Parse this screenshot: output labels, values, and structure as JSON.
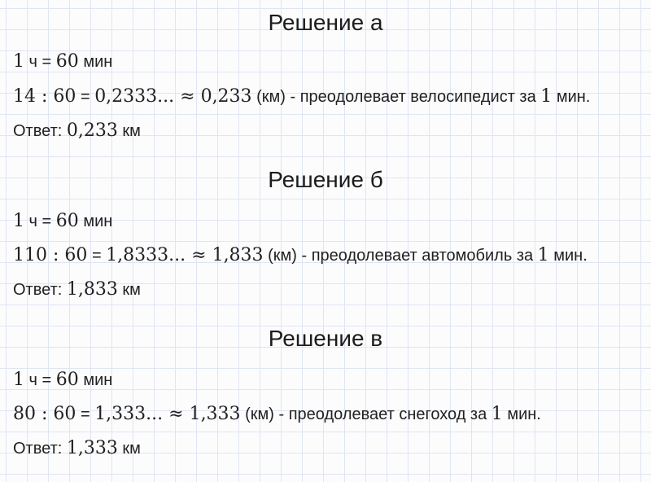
{
  "colors": {
    "background": "#fcfcfd",
    "grid_line": "#dfe5f3",
    "text": "#212121"
  },
  "document": {
    "sections": [
      {
        "id": "a",
        "title": "Решение а",
        "unit_line": [
          {
            "font": "serif",
            "text": "1"
          },
          {
            "font": "sans",
            "text": " ч = "
          },
          {
            "font": "serif",
            "text": "60"
          },
          {
            "font": "sans",
            "text": " мин"
          }
        ],
        "calc_line": [
          {
            "font": "serif",
            "text": "14 : 60"
          },
          {
            "font": "sans",
            "text": " = "
          },
          {
            "font": "serif",
            "text": "0,2333... ≈ 0,233"
          },
          {
            "font": "sans",
            "text": " (км) - преодолевает велосипедист за "
          },
          {
            "font": "serif",
            "text": "1"
          },
          {
            "font": "sans",
            "text": " мин."
          }
        ],
        "answer_line": [
          {
            "font": "sans",
            "text": "Ответ: "
          },
          {
            "font": "serif",
            "text": "0,233"
          },
          {
            "font": "sans",
            "text": " км"
          }
        ]
      },
      {
        "id": "b",
        "title": "Решение б",
        "unit_line": [
          {
            "font": "serif",
            "text": "1"
          },
          {
            "font": "sans",
            "text": " ч = "
          },
          {
            "font": "serif",
            "text": "60"
          },
          {
            "font": "sans",
            "text": " мин"
          }
        ],
        "calc_line": [
          {
            "font": "serif",
            "text": "110 : 60"
          },
          {
            "font": "sans",
            "text": " = "
          },
          {
            "font": "serif",
            "text": "1,8333... ≈ 1,833"
          },
          {
            "font": "sans",
            "text": " (км) - преодолевает автомобиль за "
          },
          {
            "font": "serif",
            "text": "1"
          },
          {
            "font": "sans",
            "text": " мин."
          }
        ],
        "answer_line": [
          {
            "font": "sans",
            "text": "Ответ: "
          },
          {
            "font": "serif",
            "text": "1,833"
          },
          {
            "font": "sans",
            "text": " км"
          }
        ]
      },
      {
        "id": "v",
        "title": "Решение в",
        "unit_line": [
          {
            "font": "serif",
            "text": "1"
          },
          {
            "font": "sans",
            "text": " ч = "
          },
          {
            "font": "serif",
            "text": "60"
          },
          {
            "font": "sans",
            "text": " мин"
          }
        ],
        "calc_line": [
          {
            "font": "serif",
            "text": "80 : 60"
          },
          {
            "font": "sans",
            "text": " = "
          },
          {
            "font": "serif",
            "text": "1,333... ≈ 1,333"
          },
          {
            "font": "sans",
            "text": " (км) - преодолевает снегоход за "
          },
          {
            "font": "serif",
            "text": "1"
          },
          {
            "font": "sans",
            "text": " мин."
          }
        ],
        "answer_line": [
          {
            "font": "sans",
            "text": "Ответ: "
          },
          {
            "font": "serif",
            "text": "1,333"
          },
          {
            "font": "sans",
            "text": " км"
          }
        ]
      }
    ]
  }
}
